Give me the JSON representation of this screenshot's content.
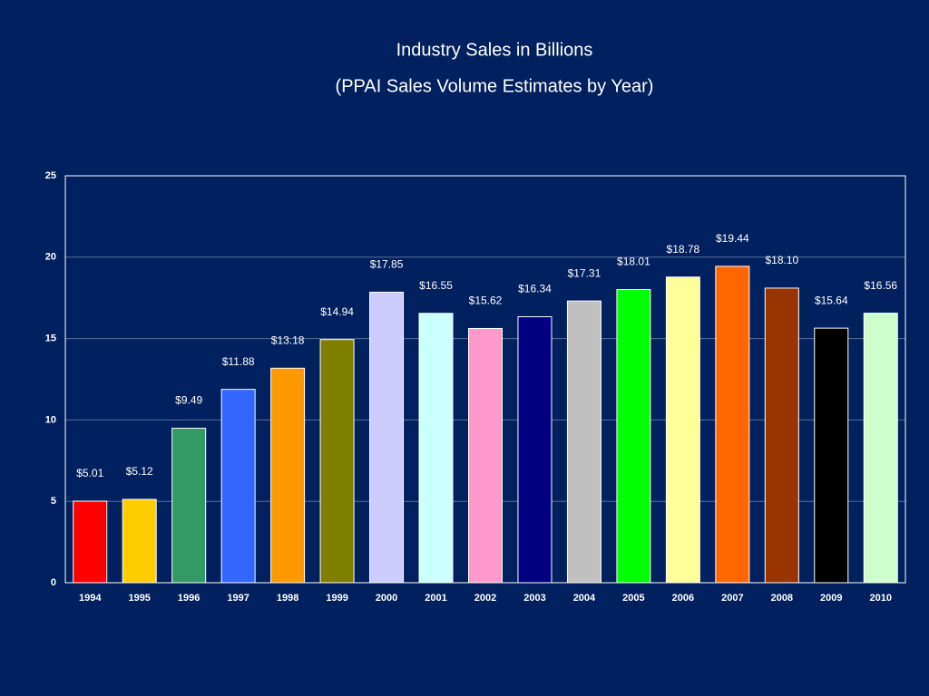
{
  "chart_data": {
    "type": "bar",
    "title": "Industry Sales in Billions",
    "subtitle": "(PPAI Sales Volume Estimates by Year)",
    "categories": [
      "1994",
      "1995",
      "1996",
      "1997",
      "1998",
      "1999",
      "2000",
      "2001",
      "2002",
      "2003",
      "2004",
      "2005",
      "2006",
      "2007",
      "2008",
      "2009",
      "2010"
    ],
    "values": [
      5.01,
      5.12,
      9.49,
      11.88,
      13.18,
      14.94,
      17.85,
      16.55,
      15.62,
      16.34,
      17.31,
      18.01,
      18.78,
      19.44,
      18.1,
      15.64,
      16.56
    ],
    "value_labels": [
      "$5.01",
      "$5.12",
      "$9.49",
      "$11.88",
      "$13.18",
      "$14.94",
      "$17.85",
      "$16.55",
      "$15.62",
      "$16.34",
      "$17.31",
      "$18.01",
      "$18.78",
      "$19.44",
      "$18.10",
      "$15.64",
      "$16.56"
    ],
    "colors": [
      "#ff0000",
      "#ffcc00",
      "#339966",
      "#3366ff",
      "#ff9900",
      "#808000",
      "#ccccff",
      "#ccffff",
      "#ff99cc",
      "#000080",
      "#c0c0c0",
      "#00ff00",
      "#ffff99",
      "#ff6600",
      "#993300",
      "#000000",
      "#ccffcc"
    ],
    "ylim": [
      0,
      25
    ],
    "yticks": [
      0,
      5,
      10,
      15,
      20,
      25
    ],
    "grid": true
  }
}
